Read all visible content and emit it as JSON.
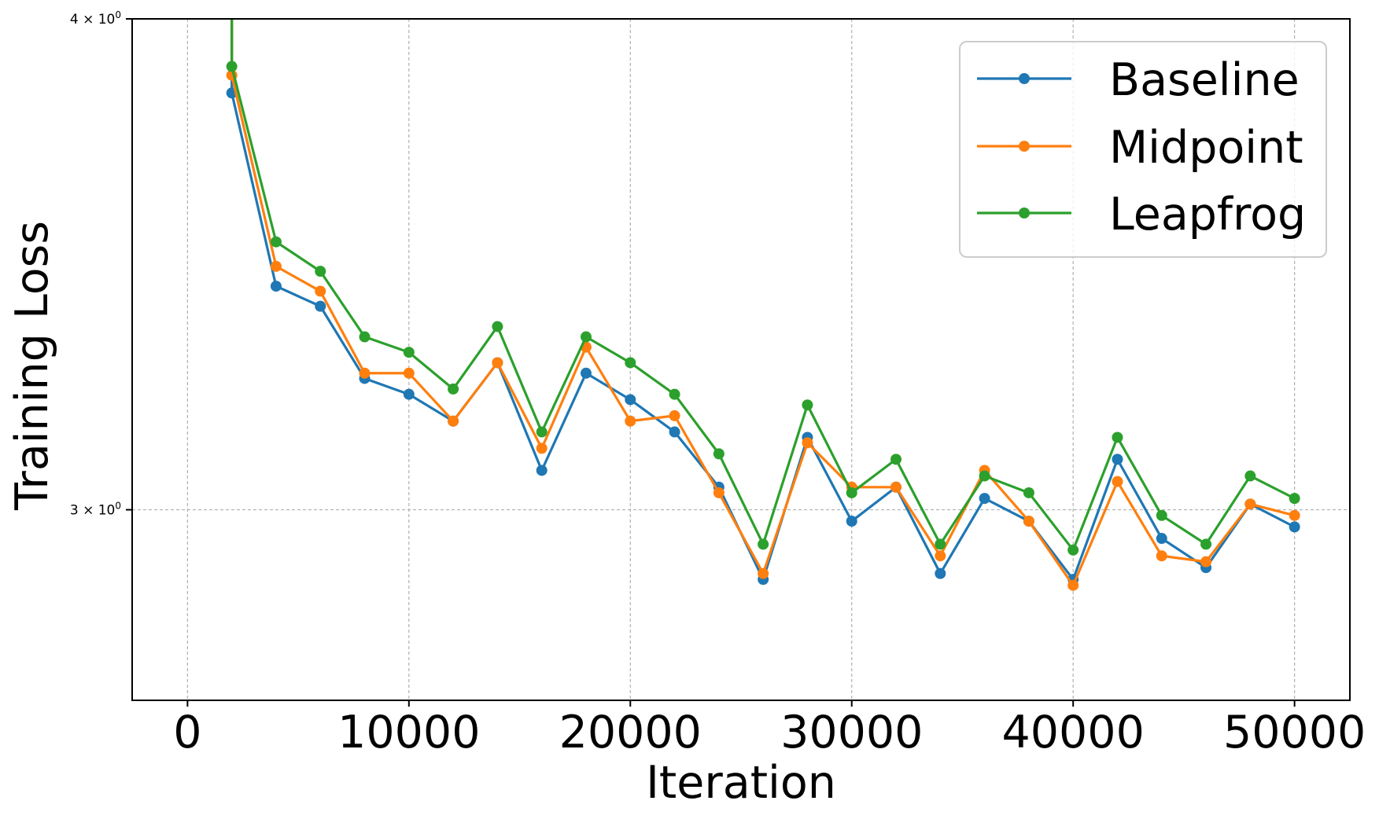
{
  "chart_data": {
    "type": "line",
    "title": "",
    "xlabel": "Iteration",
    "ylabel": "Training Loss",
    "yscale": "log",
    "xlim": [
      -2500,
      52500
    ],
    "ylim": [
      2.683,
      4.0
    ],
    "grid": true,
    "legend_position": "upper right",
    "x_ticks": [
      0,
      10000,
      20000,
      30000,
      40000,
      50000
    ],
    "x_tick_labels": [
      "0",
      "10000",
      "20000",
      "30000",
      "40000",
      "50000"
    ],
    "y_ticks": [
      {
        "value": 4.0,
        "base": "4 × 10",
        "exp": "0"
      },
      {
        "value": 3.0,
        "base": "3 × 10",
        "exp": "0"
      }
    ],
    "x": [
      2000,
      4000,
      6000,
      8000,
      10000,
      12000,
      14000,
      16000,
      18000,
      20000,
      22000,
      24000,
      26000,
      28000,
      30000,
      32000,
      34000,
      36000,
      38000,
      40000,
      42000,
      44000,
      46000,
      48000,
      50000
    ],
    "note": "All three series enter from above the top of the axis (value > 4.0) before the first visible point at x=2000.",
    "series": [
      {
        "name": "Baseline",
        "color": "#1f77b4",
        "values": [
          3.83,
          3.42,
          3.38,
          3.24,
          3.21,
          3.16,
          3.27,
          3.07,
          3.25,
          3.2,
          3.14,
          3.04,
          2.88,
          3.13,
          2.98,
          3.04,
          2.89,
          3.02,
          2.98,
          2.88,
          3.09,
          2.95,
          2.9,
          3.01,
          2.97
        ]
      },
      {
        "name": "Midpoint",
        "color": "#ff7f0e",
        "values": [
          3.87,
          3.46,
          3.41,
          3.25,
          3.25,
          3.16,
          3.27,
          3.11,
          3.3,
          3.16,
          3.17,
          3.03,
          2.89,
          3.12,
          3.04,
          3.04,
          2.92,
          3.07,
          2.98,
          2.87,
          3.05,
          2.92,
          2.91,
          3.01,
          2.99
        ]
      },
      {
        "name": "Leapfrog",
        "color": "#2ca02c",
        "values": [
          3.89,
          3.51,
          3.45,
          3.32,
          3.29,
          3.22,
          3.34,
          3.14,
          3.32,
          3.27,
          3.21,
          3.1,
          2.94,
          3.19,
          3.03,
          3.09,
          2.94,
          3.06,
          3.03,
          2.93,
          3.13,
          2.99,
          2.94,
          3.06,
          3.02
        ]
      }
    ]
  },
  "legend": {
    "items": [
      "Baseline",
      "Midpoint",
      "Leapfrog"
    ]
  }
}
